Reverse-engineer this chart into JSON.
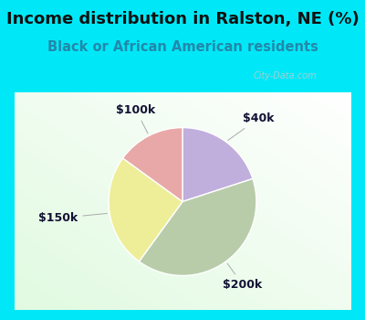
{
  "title": "Income distribution in Ralston, NE (%)",
  "subtitle": "Black or African American residents",
  "slices": [
    {
      "label": "$40k",
      "value": 20,
      "color": "#c0aedd"
    },
    {
      "label": "$200k",
      "value": 40,
      "color": "#b8ccaa"
    },
    {
      "label": "$150k",
      "value": 25,
      "color": "#eeee99"
    },
    {
      "label": "$100k",
      "value": 15,
      "color": "#e8a8a8"
    }
  ],
  "bg_cyan": "#00e8f8",
  "title_color": "#111111",
  "subtitle_color": "#2288aa",
  "title_fontsize": 13,
  "subtitle_fontsize": 10.5,
  "label_fontsize": 9,
  "label_color": "#111133",
  "watermark": "City-Data.com",
  "watermark_color": "#bbcccc"
}
